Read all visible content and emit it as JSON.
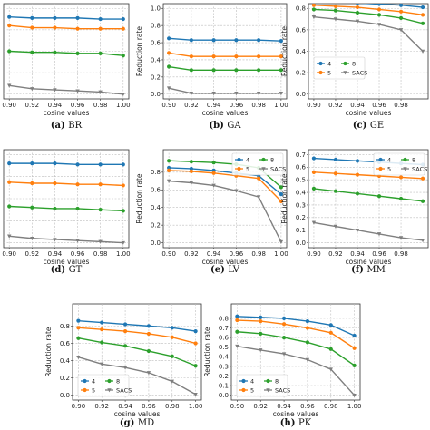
{
  "colors": {
    "4": "#1f77b4",
    "5": "#ff7f0e",
    "8": "#2ca02c",
    "SACS": "#7f7f7f"
  },
  "chart_data": [
    {
      "type": "line",
      "caption_letter": "(a)",
      "caption_name": "BR",
      "title": "",
      "xlabel": "cosine values",
      "ylabel": "",
      "x": [
        0.9,
        0.92,
        0.94,
        0.96,
        0.98,
        1.0
      ],
      "xticks": [
        "0.90",
        "0.92",
        "0.94",
        "0.96",
        "0.98",
        "1.00"
      ],
      "ylim": [
        0.0,
        0.8
      ],
      "yticks": [],
      "grid": true,
      "legend": null,
      "series": [
        {
          "name": "4",
          "values": [
            0.72,
            0.71,
            0.71,
            0.71,
            0.7,
            0.7
          ]
        },
        {
          "name": "5",
          "values": [
            0.64,
            0.62,
            0.62,
            0.61,
            0.61,
            0.61
          ]
        },
        {
          "name": "8",
          "values": [
            0.4,
            0.39,
            0.39,
            0.38,
            0.38,
            0.36
          ]
        },
        {
          "name": "SACS",
          "values": [
            0.08,
            0.05,
            0.04,
            0.03,
            0.02,
            0.0
          ]
        }
      ]
    },
    {
      "type": "line",
      "caption_letter": "(b)",
      "caption_name": "GA",
      "title": "",
      "xlabel": "cosine values",
      "ylabel": "Reduction rate",
      "x": [
        0.9,
        0.92,
        0.94,
        0.96,
        0.98,
        1.0
      ],
      "xticks": [
        "0.90",
        "0.92",
        "0.94",
        "0.96",
        "0.98",
        "1.00"
      ],
      "ylim": [
        0.0,
        1.0
      ],
      "yticks": [
        "0.0",
        "0.2",
        "0.4",
        "0.6",
        "0.8",
        "1.0"
      ],
      "grid": true,
      "legend": null,
      "series": [
        {
          "name": "4",
          "values": [
            0.65,
            0.63,
            0.63,
            0.63,
            0.63,
            0.62
          ]
        },
        {
          "name": "5",
          "values": [
            0.48,
            0.44,
            0.44,
            0.44,
            0.44,
            0.44
          ]
        },
        {
          "name": "8",
          "values": [
            0.32,
            0.28,
            0.28,
            0.28,
            0.28,
            0.28
          ]
        },
        {
          "name": "SACS",
          "values": [
            0.07,
            0.01,
            0.01,
            0.01,
            0.01,
            0.01
          ]
        }
      ]
    },
    {
      "type": "line",
      "caption_letter": "(c)",
      "caption_name": "GE",
      "title": "",
      "xlabel": "cosine values",
      "ylabel": "Reduction rate",
      "x": [
        0.9,
        0.92,
        0.94,
        0.96,
        0.98,
        1.0
      ],
      "xticks": [
        "0.90",
        "0.92",
        "0.94",
        "0.96",
        "0.98"
      ],
      "ylim": [
        0.0,
        0.8
      ],
      "yticks": [
        "0.0",
        "0.2",
        "0.4",
        "0.6",
        "0.8"
      ],
      "grid": true,
      "legend": "lower-left",
      "series": [
        {
          "name": "4",
          "values": [
            0.87,
            0.86,
            0.85,
            0.84,
            0.83,
            0.81
          ]
        },
        {
          "name": "5",
          "values": [
            0.83,
            0.82,
            0.81,
            0.79,
            0.77,
            0.74
          ]
        },
        {
          "name": "8",
          "values": [
            0.79,
            0.78,
            0.76,
            0.74,
            0.71,
            0.66
          ]
        },
        {
          "name": "SACS",
          "values": [
            0.72,
            0.7,
            0.68,
            0.65,
            0.6,
            0.4
          ]
        }
      ]
    },
    {
      "type": "line",
      "caption_letter": "(d)",
      "caption_name": "GT",
      "title": "",
      "xlabel": "cosine values",
      "ylabel": "",
      "x": [
        0.9,
        0.92,
        0.94,
        0.96,
        0.98,
        1.0
      ],
      "xticks": [
        "0.90",
        "0.92",
        "0.94",
        "0.96",
        "0.98",
        "1.00"
      ],
      "ylim": [
        0.0,
        0.8
      ],
      "yticks": [],
      "grid": true,
      "legend": null,
      "series": [
        {
          "name": "4",
          "values": [
            0.72,
            0.72,
            0.72,
            0.71,
            0.71,
            0.71
          ]
        },
        {
          "name": "5",
          "values": [
            0.55,
            0.54,
            0.54,
            0.53,
            0.53,
            0.52
          ]
        },
        {
          "name": "8",
          "values": [
            0.33,
            0.32,
            0.31,
            0.31,
            0.3,
            0.29
          ]
        },
        {
          "name": "SACS",
          "values": [
            0.06,
            0.04,
            0.03,
            0.02,
            0.01,
            0.0
          ]
        }
      ]
    },
    {
      "type": "line",
      "caption_letter": "(e)",
      "caption_name": "LV",
      "title": "",
      "xlabel": "cosine values",
      "ylabel": "Reduction rate",
      "x": [
        0.9,
        0.92,
        0.94,
        0.96,
        0.98,
        1.0
      ],
      "xticks": [
        "0.90",
        "0.92",
        "0.94",
        "0.96",
        "0.98",
        "1.00"
      ],
      "ylim": [
        0.0,
        1.0
      ],
      "yticks": [
        "0.0",
        "0.2",
        "0.4",
        "0.6",
        "0.8"
      ],
      "grid": true,
      "legend": "top-right",
      "series": [
        {
          "name": "4",
          "values": [
            0.85,
            0.84,
            0.82,
            0.79,
            0.76,
            0.55
          ]
        },
        {
          "name": "5",
          "values": [
            0.82,
            0.81,
            0.79,
            0.76,
            0.73,
            0.47
          ]
        },
        {
          "name": "8",
          "values": [
            0.93,
            0.92,
            0.91,
            0.89,
            0.85,
            0.63
          ]
        },
        {
          "name": "SACS",
          "values": [
            0.7,
            0.68,
            0.65,
            0.59,
            0.52,
            0.01
          ]
        }
      ]
    },
    {
      "type": "line",
      "caption_letter": "(f)",
      "caption_name": "MM",
      "title": "",
      "xlabel": "cosine values",
      "ylabel": "Reduction rate",
      "x": [
        0.9,
        0.92,
        0.94,
        0.96,
        0.98,
        1.0
      ],
      "xticks": [
        "0.90",
        "0.92",
        "0.94",
        "0.96",
        "0.98"
      ],
      "ylim": [
        0.0,
        0.7
      ],
      "yticks": [
        "0.0",
        "0.1",
        "0.2",
        "0.3",
        "0.4",
        "0.5",
        "0.6",
        "0.7"
      ],
      "grid": true,
      "legend": "top-right",
      "series": [
        {
          "name": "4",
          "values": [
            0.67,
            0.66,
            0.65,
            0.64,
            0.63,
            0.62
          ]
        },
        {
          "name": "5",
          "values": [
            0.56,
            0.55,
            0.54,
            0.53,
            0.52,
            0.51
          ]
        },
        {
          "name": "8",
          "values": [
            0.43,
            0.41,
            0.39,
            0.37,
            0.35,
            0.33
          ]
        },
        {
          "name": "SACS",
          "values": [
            0.16,
            0.13,
            0.1,
            0.07,
            0.04,
            0.02
          ]
        }
      ]
    },
    {
      "type": "line",
      "caption_letter": "(g)",
      "caption_name": "MD",
      "title": "",
      "xlabel": "cosine values",
      "ylabel": "Reduction rate",
      "x": [
        0.9,
        0.92,
        0.94,
        0.96,
        0.98,
        1.0
      ],
      "xticks": [
        "0.90",
        "0.92",
        "0.94",
        "0.96",
        "0.98",
        "1.00"
      ],
      "ylim": [
        0.0,
        1.0
      ],
      "yticks": [
        "0.0",
        "0.2",
        "0.4",
        "0.6",
        "0.8"
      ],
      "grid": true,
      "legend": "bottom-left",
      "series": [
        {
          "name": "4",
          "values": [
            0.86,
            0.84,
            0.82,
            0.8,
            0.78,
            0.74
          ]
        },
        {
          "name": "5",
          "values": [
            0.78,
            0.76,
            0.74,
            0.71,
            0.67,
            0.6
          ]
        },
        {
          "name": "8",
          "values": [
            0.66,
            0.61,
            0.57,
            0.51,
            0.45,
            0.34
          ]
        },
        {
          "name": "SACS",
          "values": [
            0.44,
            0.36,
            0.32,
            0.26,
            0.16,
            0.01
          ]
        }
      ]
    },
    {
      "type": "line",
      "caption_letter": "(h)",
      "caption_name": "PK",
      "title": "",
      "xlabel": "cosine values",
      "ylabel": "Reduction rate",
      "x": [
        0.9,
        0.92,
        0.94,
        0.96,
        0.98,
        1.0
      ],
      "xticks": [
        "0.90",
        "0.92",
        "0.94",
        "0.96",
        "0.98",
        "1.00"
      ],
      "ylim": [
        0.0,
        0.9
      ],
      "yticks": [
        "0.0",
        "0.1",
        "0.2",
        "0.3",
        "0.4",
        "0.5",
        "0.6",
        "0.7",
        "0.8"
      ],
      "grid": true,
      "legend": "bottom-left",
      "series": [
        {
          "name": "4",
          "values": [
            0.82,
            0.81,
            0.8,
            0.77,
            0.73,
            0.62
          ]
        },
        {
          "name": "5",
          "values": [
            0.78,
            0.77,
            0.74,
            0.7,
            0.65,
            0.49
          ]
        },
        {
          "name": "8",
          "values": [
            0.66,
            0.64,
            0.6,
            0.55,
            0.48,
            0.31
          ]
        },
        {
          "name": "SACS",
          "values": [
            0.51,
            0.47,
            0.43,
            0.37,
            0.27,
            0.0
          ]
        }
      ]
    }
  ]
}
